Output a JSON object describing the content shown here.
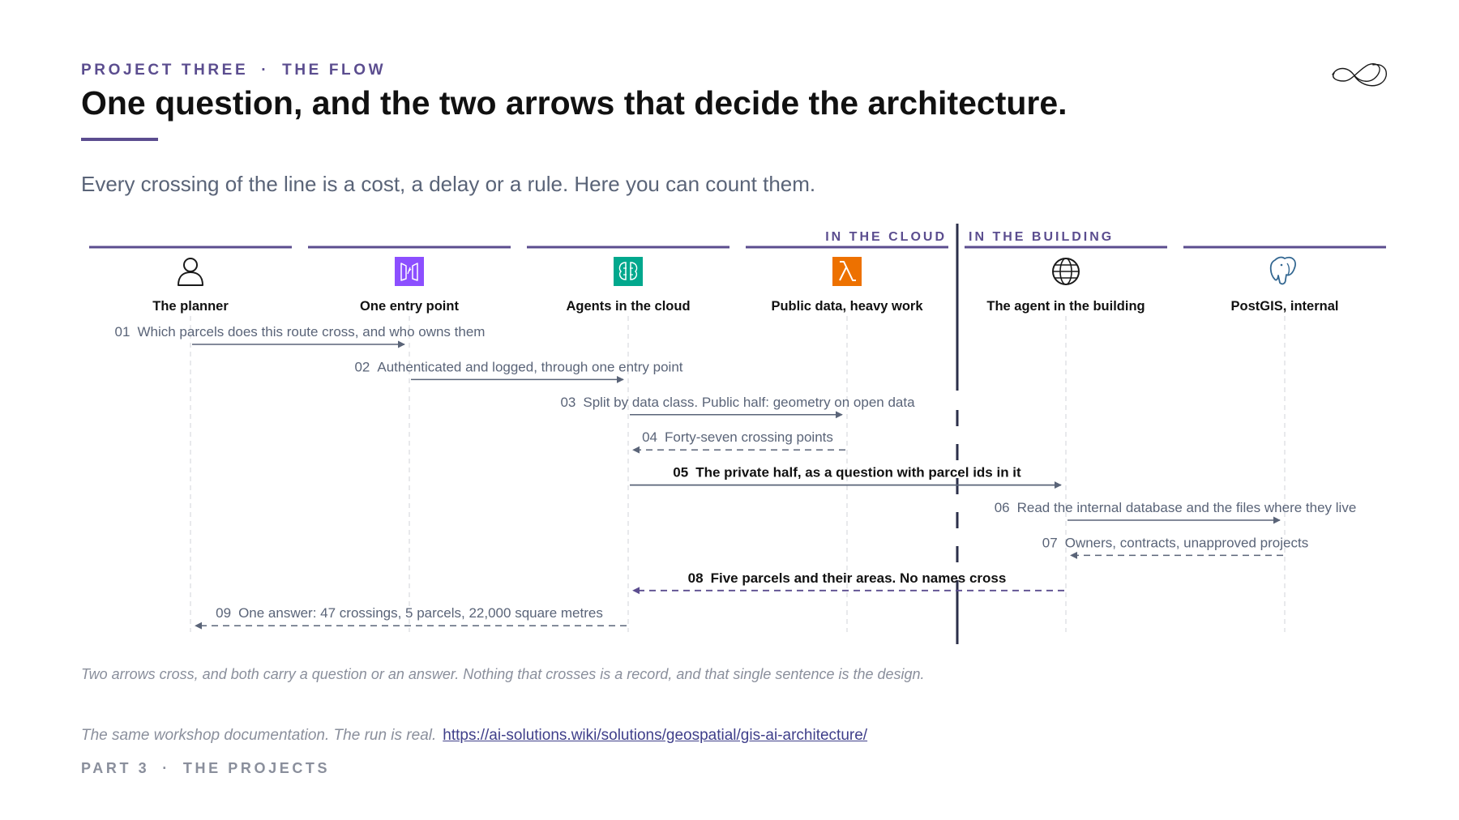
{
  "header": {
    "kicker_left": "PROJECT THREE",
    "kicker_sep": "·",
    "kicker_right": "THE FLOW",
    "title": "One question, and the two arrows that decide the architecture.",
    "subtitle": "Every crossing of the line is a cost, a delay or a rule. Here you can count them."
  },
  "zones": {
    "cloud": "IN THE CLOUD",
    "building": "IN THE BUILDING"
  },
  "actors": [
    {
      "label": "The planner",
      "icon": "person-icon"
    },
    {
      "label": "One entry point",
      "icon": "api-gateway-icon",
      "color": "#8c4fff"
    },
    {
      "label": "Agents in the cloud",
      "icon": "ai-agents-icon",
      "color": "#01a88d"
    },
    {
      "label": "Public data, heavy work",
      "icon": "lambda-icon",
      "color": "#ed7100"
    },
    {
      "label": "The agent in the building",
      "icon": "globe-icon"
    },
    {
      "label": "PostGIS, internal",
      "icon": "postgresql-elephant-icon",
      "color": "#336791"
    }
  ],
  "messages": [
    {
      "num": "01",
      "text": "Which parcels does this route cross, and who owns them",
      "from": 0,
      "to": 1,
      "style": "solid",
      "emphasis": false
    },
    {
      "num": "02",
      "text": "Authenticated and logged, through one entry point",
      "from": 1,
      "to": 2,
      "style": "solid",
      "emphasis": false
    },
    {
      "num": "03",
      "text": "Split by data class. Public half: geometry on open data",
      "from": 2,
      "to": 3,
      "style": "solid",
      "emphasis": false
    },
    {
      "num": "04",
      "text": "Forty-seven crossing points",
      "from": 3,
      "to": 2,
      "style": "dashed",
      "emphasis": false
    },
    {
      "num": "05",
      "text": "The private half, as a question with parcel ids in it",
      "from": 2,
      "to": 4,
      "style": "solid",
      "emphasis": true
    },
    {
      "num": "06",
      "text": "Read the internal database and the files where they live",
      "from": 4,
      "to": 5,
      "style": "solid",
      "emphasis": false
    },
    {
      "num": "07",
      "text": "Owners, contracts, unapproved projects",
      "from": 5,
      "to": 4,
      "style": "dashed",
      "emphasis": false
    },
    {
      "num": "08",
      "text": "Five parcels and their areas. No names cross",
      "from": 4,
      "to": 2,
      "style": "dashed",
      "emphasis": true
    },
    {
      "num": "09",
      "text": "One answer: 47 crossings, 5 parcels, 22,000 square metres",
      "from": 2,
      "to": 0,
      "style": "dashed",
      "emphasis": false
    }
  ],
  "caption": "Two arrows cross, and both carry a question or an answer. Nothing that crosses is a record, and that single sentence is the design.",
  "source": {
    "text": "The same workshop documentation. The run is real.",
    "url": "https://ai-solutions.wiki/solutions/geospatial/gis-ai-architecture/"
  },
  "footer": {
    "left": "PART 3",
    "sep": "·",
    "right": "THE PROJECTS"
  },
  "colors": {
    "accent": "#5b4d8f",
    "arrow": "#5a6478",
    "emphasis_arrow": "#5b4d8f",
    "lifeline": "#d0d3da",
    "boundary": "#2b2f4a"
  }
}
